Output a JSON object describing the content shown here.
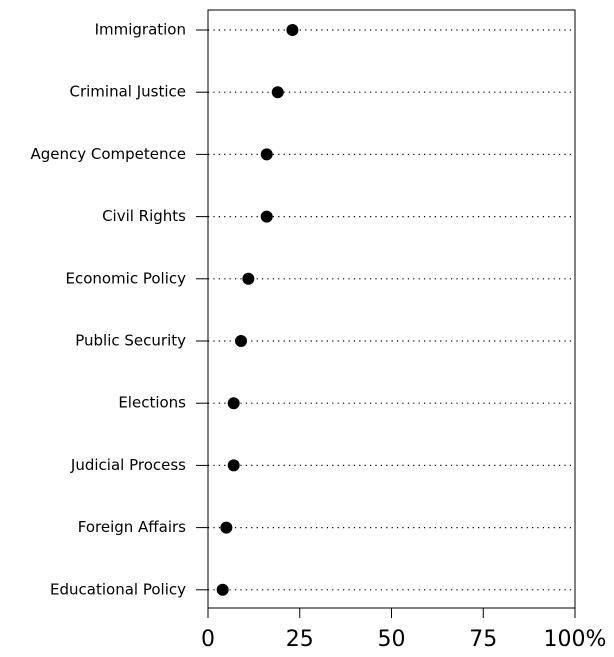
{
  "chart_data": {
    "type": "scatter",
    "categories": [
      "Immigration",
      "Criminal Justice",
      "Agency Competence",
      "Civil Rights",
      "Economic Policy",
      "Public Security",
      "Elections",
      "Judicial Process",
      "Foreign Affairs",
      "Educational Policy"
    ],
    "values": [
      23,
      19,
      16,
      16,
      11,
      9,
      7,
      7,
      5,
      4
    ],
    "x_ticks": [
      0,
      25,
      50,
      75,
      100
    ],
    "x_tick_labels": [
      "0",
      "25",
      "50",
      "75",
      "100%"
    ],
    "xlim": [
      0,
      100
    ],
    "title": "",
    "xlabel": "",
    "ylabel": "",
    "grid": "dotted horizontal",
    "legend": "none",
    "marker_color": "#000000"
  }
}
